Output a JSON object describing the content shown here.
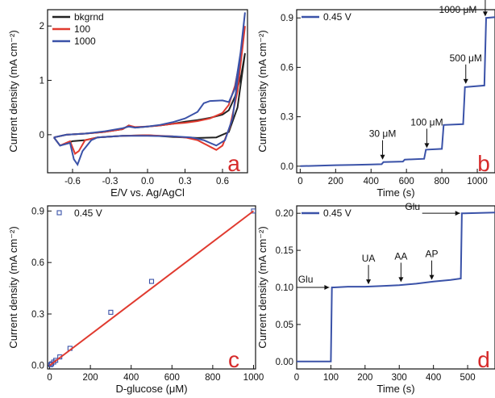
{
  "chart_data": [
    {
      "panel": "a",
      "type": "line",
      "xlabel": "E/V vs. Ag/AgCl",
      "ylabel": "Current density (mA cm⁻²)",
      "xlim": [
        -0.8,
        0.8
      ],
      "ylim": [
        -0.7,
        2.3
      ],
      "xticks": [
        "-0.6",
        "-0.3",
        "0.0",
        "0.3",
        "0.6"
      ],
      "xtick_values": [
        -0.6,
        -0.3,
        0.0,
        0.3,
        0.6
      ],
      "yticks": [
        "0",
        "1",
        "2"
      ],
      "ytick_values": [
        0,
        1,
        2
      ],
      "legend_position": "top-left",
      "series": [
        {
          "name": "bkgrnd",
          "color": "#222222",
          "upper": [
            [
              -0.75,
              -0.05
            ],
            [
              -0.65,
              0.0
            ],
            [
              -0.5,
              0.02
            ],
            [
              -0.35,
              0.05
            ],
            [
              -0.2,
              0.1
            ],
            [
              -0.15,
              0.17
            ],
            [
              -0.1,
              0.13
            ],
            [
              0.0,
              0.15
            ],
            [
              0.1,
              0.17
            ],
            [
              0.2,
              0.2
            ],
            [
              0.3,
              0.24
            ],
            [
              0.4,
              0.27
            ],
            [
              0.5,
              0.31
            ],
            [
              0.6,
              0.37
            ],
            [
              0.65,
              0.45
            ],
            [
              0.7,
              0.7
            ],
            [
              0.75,
              1.1
            ],
            [
              0.78,
              1.5
            ]
          ],
          "lower": [
            [
              0.78,
              1.5
            ],
            [
              0.72,
              0.5
            ],
            [
              0.65,
              0.05
            ],
            [
              0.55,
              -0.05
            ],
            [
              0.4,
              -0.06
            ],
            [
              0.2,
              -0.04
            ],
            [
              0.0,
              -0.01
            ],
            [
              -0.2,
              -0.02
            ],
            [
              -0.4,
              -0.05
            ],
            [
              -0.5,
              -0.1
            ],
            [
              -0.6,
              -0.12
            ],
            [
              -0.7,
              -0.2
            ],
            [
              -0.75,
              -0.05
            ]
          ]
        },
        {
          "name": "100",
          "color": "#e03a2f",
          "upper": [
            [
              -0.75,
              -0.05
            ],
            [
              -0.65,
              0.0
            ],
            [
              -0.5,
              0.02
            ],
            [
              -0.35,
              0.05
            ],
            [
              -0.2,
              0.1
            ],
            [
              -0.15,
              0.17
            ],
            [
              -0.1,
              0.14
            ],
            [
              0.0,
              0.15
            ],
            [
              0.1,
              0.17
            ],
            [
              0.2,
              0.2
            ],
            [
              0.3,
              0.22
            ],
            [
              0.4,
              0.25
            ],
            [
              0.5,
              0.3
            ],
            [
              0.6,
              0.4
            ],
            [
              0.65,
              0.55
            ],
            [
              0.7,
              0.9
            ],
            [
              0.75,
              1.5
            ],
            [
              0.78,
              2.0
            ]
          ],
          "lower": [
            [
              0.78,
              2.0
            ],
            [
              0.72,
              0.8
            ],
            [
              0.66,
              0.15
            ],
            [
              0.6,
              -0.2
            ],
            [
              0.55,
              -0.28
            ],
            [
              0.5,
              -0.22
            ],
            [
              0.4,
              -0.1
            ],
            [
              0.3,
              -0.05
            ],
            [
              0.2,
              -0.03
            ],
            [
              0.0,
              -0.01
            ],
            [
              -0.2,
              -0.02
            ],
            [
              -0.4,
              -0.05
            ],
            [
              -0.5,
              -0.1
            ],
            [
              -0.55,
              -0.3
            ],
            [
              -0.58,
              -0.35
            ],
            [
              -0.62,
              -0.12
            ],
            [
              -0.7,
              -0.2
            ],
            [
              -0.75,
              -0.05
            ]
          ]
        },
        {
          "name": "1000",
          "color": "#3a52a8",
          "upper": [
            [
              -0.75,
              -0.05
            ],
            [
              -0.65,
              0.0
            ],
            [
              -0.5,
              0.02
            ],
            [
              -0.35,
              0.06
            ],
            [
              -0.2,
              0.12
            ],
            [
              -0.15,
              0.15
            ],
            [
              -0.1,
              0.13
            ],
            [
              0.0,
              0.15
            ],
            [
              0.1,
              0.18
            ],
            [
              0.2,
              0.23
            ],
            [
              0.3,
              0.3
            ],
            [
              0.4,
              0.42
            ],
            [
              0.45,
              0.58
            ],
            [
              0.5,
              0.62
            ],
            [
              0.6,
              0.63
            ],
            [
              0.65,
              0.6
            ],
            [
              0.7,
              0.85
            ],
            [
              0.75,
              1.6
            ],
            [
              0.78,
              2.25
            ]
          ],
          "lower": [
            [
              0.78,
              2.25
            ],
            [
              0.72,
              1.0
            ],
            [
              0.68,
              0.3
            ],
            [
              0.62,
              -0.1
            ],
            [
              0.55,
              -0.2
            ],
            [
              0.5,
              -0.15
            ],
            [
              0.45,
              -0.1
            ],
            [
              0.35,
              -0.05
            ],
            [
              0.2,
              -0.03
            ],
            [
              0.0,
              -0.02
            ],
            [
              -0.2,
              -0.02
            ],
            [
              -0.4,
              -0.05
            ],
            [
              -0.45,
              -0.1
            ],
            [
              -0.52,
              -0.3
            ],
            [
              -0.56,
              -0.55
            ],
            [
              -0.59,
              -0.45
            ],
            [
              -0.62,
              -0.15
            ],
            [
              -0.7,
              -0.2
            ],
            [
              -0.75,
              -0.05
            ]
          ]
        }
      ]
    },
    {
      "panel": "b",
      "type": "line",
      "xlabel": "Time (s)",
      "ylabel": "Current density (mA cm⁻²)",
      "xlim": [
        -20,
        1100
      ],
      "ylim": [
        -0.04,
        0.95
      ],
      "xticks": [
        "0",
        "200",
        "400",
        "600",
        "800",
        "1000"
      ],
      "xtick_values": [
        0,
        200,
        400,
        600,
        800,
        1000
      ],
      "yticks": [
        "0.0",
        "0.3",
        "0.6",
        "0.9"
      ],
      "ytick_values": [
        0.0,
        0.3,
        0.6,
        0.9
      ],
      "legend_position": "top-left",
      "series": [
        {
          "name": "0.45 V",
          "color": "#3a52a8",
          "x": [
            0,
            100,
            200,
            300,
            400,
            460,
            470,
            580,
            590,
            700,
            710,
            800,
            810,
            920,
            930,
            1040,
            1050,
            1100
          ],
          "y": [
            0.0,
            0.003,
            0.006,
            0.008,
            0.01,
            0.012,
            0.025,
            0.028,
            0.04,
            0.045,
            0.1,
            0.105,
            0.25,
            0.255,
            0.48,
            0.49,
            0.9,
            0.905
          ]
        }
      ],
      "annotations": [
        {
          "text": "30 μM",
          "x": 465,
          "y": 0.03
        },
        {
          "text": "100 μM",
          "x": 715,
          "y": 0.1
        },
        {
          "text": "500 μM",
          "x": 935,
          "y": 0.49
        },
        {
          "text": "1000 μM",
          "x": 1045,
          "y": 0.9
        }
      ]
    },
    {
      "panel": "c",
      "type": "scatter",
      "xlabel": "D-glucose (μM)",
      "ylabel": "Current density (mA cm⁻²)",
      "xlim": [
        -10,
        1010
      ],
      "ylim": [
        -0.02,
        0.93
      ],
      "xticks": [
        "0",
        "200",
        "400",
        "600",
        "800",
        "1000"
      ],
      "xtick_values": [
        0,
        200,
        400,
        600,
        800,
        1000
      ],
      "yticks": [
        "0.0",
        "0.3",
        "0.6",
        "0.9"
      ],
      "ytick_values": [
        0.0,
        0.3,
        0.6,
        0.9
      ],
      "legend_position": "top-left",
      "series": [
        {
          "name": "0.45 V",
          "color": "#3a52a8",
          "x": [
            5,
            10,
            20,
            30,
            50,
            100,
            300,
            500,
            1000
          ],
          "y": [
            0.005,
            0.01,
            0.02,
            0.03,
            0.05,
            0.1,
            0.31,
            0.49,
            0.9
          ]
        }
      ],
      "fit": {
        "color": "#e03a2f",
        "x": [
          0,
          1000
        ],
        "y": [
          0.0,
          0.9
        ]
      }
    },
    {
      "panel": "d",
      "type": "line",
      "xlabel": "Time (s)",
      "ylabel": "Current density (mA cm⁻²)",
      "xlim": [
        0,
        580
      ],
      "ylim": [
        -0.01,
        0.21
      ],
      "xticks": [
        "0",
        "100",
        "200",
        "300",
        "400",
        "500"
      ],
      "xtick_values": [
        0,
        100,
        200,
        300,
        400,
        500
      ],
      "yticks": [
        "0.00",
        "0.05",
        "0.10",
        "0.15",
        "0.20"
      ],
      "ytick_values": [
        0.0,
        0.05,
        0.1,
        0.15,
        0.2
      ],
      "legend_position": "top-left",
      "series": [
        {
          "name": "0.45 V",
          "color": "#3a52a8",
          "x": [
            0,
            50,
            100,
            103,
            110,
            150,
            200,
            250,
            300,
            350,
            400,
            450,
            480,
            483,
            490,
            580
          ],
          "y": [
            0.0,
            0.0,
            0.0,
            0.1,
            0.1,
            0.101,
            0.101,
            0.102,
            0.103,
            0.105,
            0.108,
            0.11,
            0.112,
            0.2,
            0.2,
            0.201
          ]
        }
      ],
      "annotations": [
        {
          "text": "Glu",
          "x": 100,
          "y": 0.1
        },
        {
          "text": "UA",
          "x": 210,
          "y": 0.102
        },
        {
          "text": "AA",
          "x": 305,
          "y": 0.105
        },
        {
          "text": "AP",
          "x": 395,
          "y": 0.108
        },
        {
          "text": "Glu",
          "x": 485,
          "y": 0.2
        }
      ]
    }
  ],
  "panel_letters": [
    "a",
    "b",
    "c",
    "d"
  ]
}
